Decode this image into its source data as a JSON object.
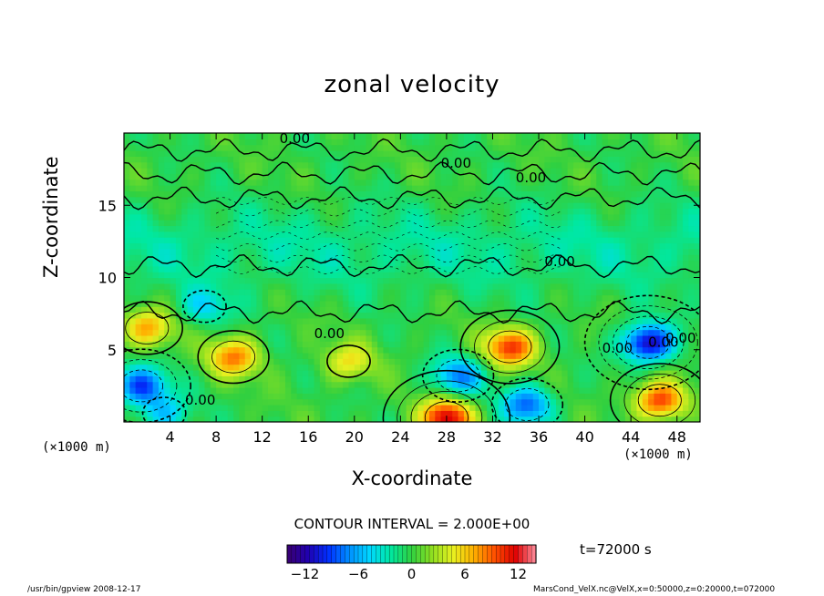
{
  "chart_data": {
    "type": "heatmap",
    "title": "zonal velocity",
    "xlabel": "X-coordinate",
    "ylabel": "Z-coordinate",
    "x_unit": "(×1000 m)",
    "xlim": [
      0,
      50
    ],
    "ylim": [
      0,
      20
    ],
    "x_ticks": [
      4,
      8,
      12,
      16,
      20,
      24,
      28,
      32,
      36,
      40,
      44,
      48
    ],
    "y_ticks": [
      5,
      10,
      15
    ],
    "contour_interval_text": "CONTOUR INTERVAL = 2.000E+00",
    "contour_labels": [
      "0.00",
      "0.00",
      "0.00",
      "0.00",
      "0.00",
      "0.00",
      "0.00",
      "0.00",
      "0.00"
    ],
    "colorbar": {
      "min": -14,
      "max": 14,
      "ticks": [
        -12,
        -6,
        0,
        6,
        12
      ],
      "palette": [
        "#3a0070",
        "#2000b0",
        "#0030ff",
        "#0090ff",
        "#00d8ff",
        "#00e8a0",
        "#30d040",
        "#90e020",
        "#e8f020",
        "#ffb000",
        "#ff5000",
        "#e00000",
        "#ff90a0"
      ]
    },
    "features": [
      {
        "x": 28,
        "z": 0.3,
        "value": 12
      },
      {
        "x": 33.5,
        "z": 5.2,
        "value": 10
      },
      {
        "x": 46.5,
        "z": 1.5,
        "value": 10
      },
      {
        "x": 9.5,
        "z": 4.5,
        "value": 8
      },
      {
        "x": 2,
        "z": 6.5,
        "value": 7
      },
      {
        "x": 45.5,
        "z": 5.5,
        "value": -12
      },
      {
        "x": 1.5,
        "z": 2.5,
        "value": -9
      },
      {
        "x": 29,
        "z": 3.2,
        "value": -7
      },
      {
        "x": 35,
        "z": 1.2,
        "value": -8
      },
      {
        "x": 19.5,
        "z": 4.2,
        "value": 5
      },
      {
        "x": 7,
        "z": 8,
        "value": -4
      },
      {
        "x": 3.5,
        "z": 0.6,
        "value": -5
      }
    ]
  },
  "time_label": "t=72000 s",
  "footer": {
    "left": "/usr/bin/gpview    2008-12-17",
    "right": "MarsCond_VelX.nc@VelX,x=0:50000,z=0:20000,t=072000"
  }
}
